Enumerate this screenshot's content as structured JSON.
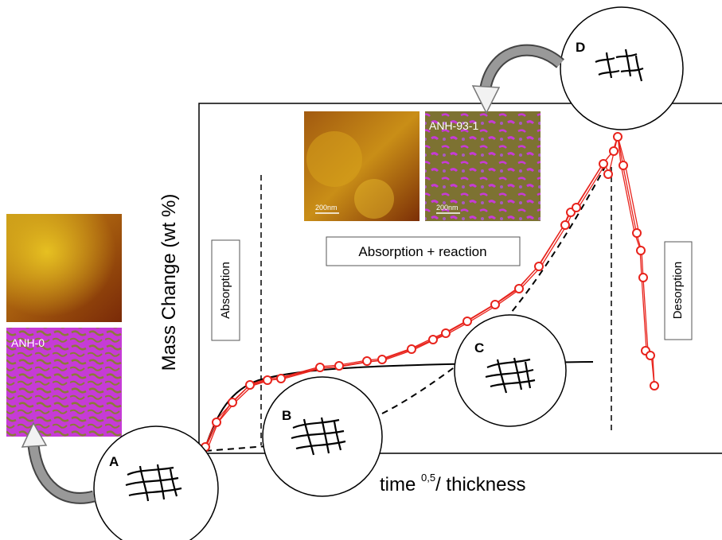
{
  "axes": {
    "ylabel": "Mass Change (wt %)",
    "xlabel_main": "time ",
    "xlabel_sup": "0,5",
    "xlabel_tail": "/ thickness"
  },
  "region_labels": {
    "absorption": "Absorption",
    "absorption_reaction": "Absorption + reaction",
    "desorption": "Desorption"
  },
  "images": {
    "left_phase_label": "ANH-0",
    "top_phase_label": "ANH-93-1",
    "scale_bar_label": "200nm"
  },
  "stages": [
    "A",
    "B",
    "C",
    "D"
  ],
  "colors": {
    "data": "#e8231c",
    "magenta": "#c63bd6",
    "olive": "#8b7a3a"
  }
}
